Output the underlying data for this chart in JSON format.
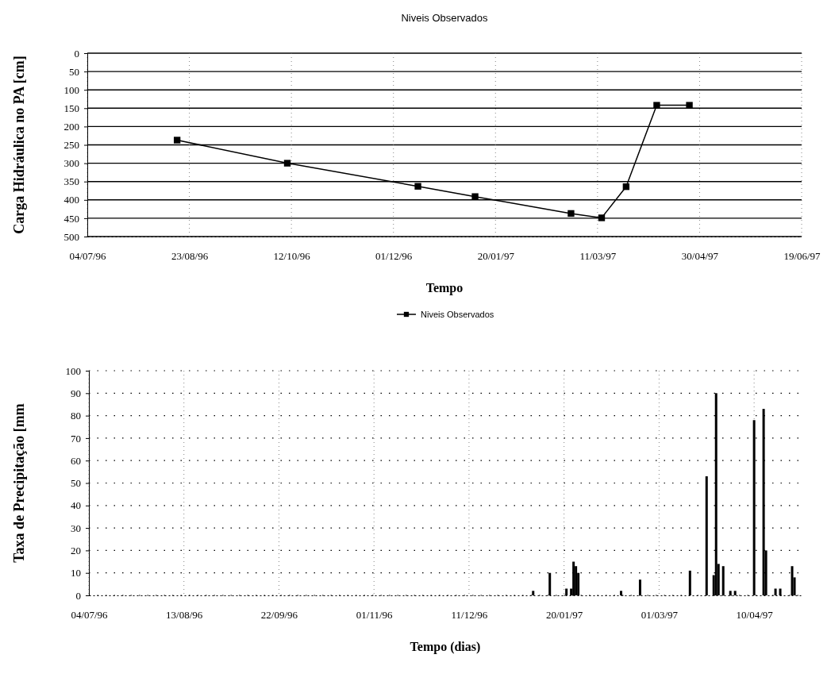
{
  "chart_data": [
    {
      "type": "line",
      "title": "Niveis Observados",
      "xlabel": "Tempo",
      "ylabel": "Carga Hidráulica no PA [cm]",
      "marker": "square",
      "line_style": "solid",
      "grid": true,
      "legend": "bottom",
      "xlim": [
        "1996-07-04",
        "1997-06-19"
      ],
      "xticks": [
        {
          "value": "1996-07-04",
          "label": "04/07/96"
        },
        {
          "value": "1996-08-23",
          "label": "23/08/96"
        },
        {
          "value": "1996-10-12",
          "label": "12/10/96"
        },
        {
          "value": "1996-12-01",
          "label": "01/12/96"
        },
        {
          "value": "1997-01-20",
          "label": "20/01/97"
        },
        {
          "value": "1997-03-11",
          "label": "11/03/97"
        },
        {
          "value": "1997-04-30",
          "label": "30/04/97"
        },
        {
          "value": "1997-06-19",
          "label": "19/06/97"
        }
      ],
      "ylim": [
        500,
        0
      ],
      "yticks": [
        0,
        50,
        100,
        150,
        200,
        250,
        300,
        350,
        400,
        450,
        500
      ],
      "series": [
        {
          "name": "Niveis Observados",
          "color": "#000000",
          "x": [
            "1996-08-17",
            "1996-10-10",
            "1996-12-13",
            "1997-01-10",
            "1997-02-26",
            "1997-03-13",
            "1997-03-25",
            "1997-04-09",
            "1997-04-25"
          ],
          "values": [
            237,
            300,
            363,
            391,
            437,
            449,
            364,
            142,
            142
          ]
        }
      ]
    },
    {
      "type": "bar",
      "xlabel": "Tempo (dias)",
      "ylabel": "Taxa de Precipitação [mm",
      "grid": true,
      "xlim": [
        "1996-07-04",
        "1997-04-30"
      ],
      "xticks": [
        {
          "value": "1996-07-04",
          "label": "04/07/96"
        },
        {
          "value": "1996-08-13",
          "label": "13/08/96"
        },
        {
          "value": "1996-09-22",
          "label": "22/09/96"
        },
        {
          "value": "1996-11-01",
          "label": "01/11/96"
        },
        {
          "value": "1996-12-11",
          "label": "11/12/96"
        },
        {
          "value": "1997-01-20",
          "label": "20/01/97"
        },
        {
          "value": "1997-03-01",
          "label": "01/03/97"
        },
        {
          "value": "1997-04-10",
          "label": "10/04/97"
        }
      ],
      "ylim": [
        0,
        100
      ],
      "yticks": [
        0,
        10,
        20,
        30,
        40,
        50,
        60,
        70,
        80,
        90,
        100
      ],
      "series": [
        {
          "color": "#000000",
          "x": [
            "1997-01-07",
            "1997-01-14",
            "1997-01-21",
            "1997-01-23",
            "1997-01-24",
            "1997-01-25",
            "1997-01-26",
            "1997-02-13",
            "1997-02-21",
            "1997-03-14",
            "1997-03-21",
            "1997-03-24",
            "1997-03-25",
            "1997-03-26",
            "1997-03-28",
            "1997-03-31",
            "1997-04-02",
            "1997-04-10",
            "1997-04-14",
            "1997-04-15",
            "1997-04-19",
            "1997-04-21",
            "1997-04-26",
            "1997-04-27"
          ],
          "values": [
            2,
            10,
            3,
            3,
            15,
            13,
            10,
            2,
            7,
            11,
            53,
            9,
            90,
            14,
            13,
            2,
            2,
            78,
            83,
            20,
            3,
            3,
            13,
            8
          ]
        }
      ]
    }
  ]
}
